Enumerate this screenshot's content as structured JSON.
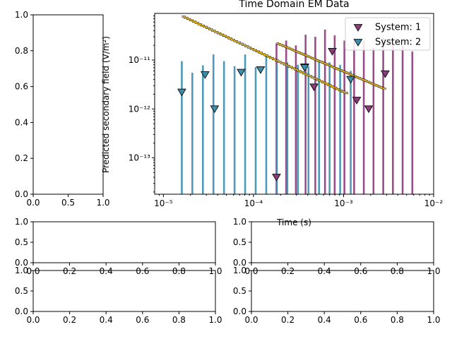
{
  "figure": {
    "background": "#ffffff"
  },
  "chart_data": [
    {
      "panel": "empty-left",
      "type": "empty",
      "xlim": [
        0,
        1
      ],
      "ylim": [
        0,
        1
      ],
      "xticks": [
        "0.0",
        "0.5",
        "1.0"
      ],
      "yticks": [
        "0.0",
        "0.2",
        "0.4",
        "0.6",
        "0.8",
        "1.0"
      ]
    },
    {
      "panel": "main",
      "type": "scatter",
      "title": "Time Domain EM Data",
      "xlabel": "Time (s)",
      "ylabel": "Predicted secondary field (V/m²)",
      "xscale": "log",
      "yscale": "log",
      "xlim": [
        8e-06,
        0.01
      ],
      "ylim": [
        1.8e-14,
        9e-11
      ],
      "xticks": [
        {
          "v": 1e-05,
          "label": "10⁻⁵"
        },
        {
          "v": 0.0001,
          "label": "10⁻⁴"
        },
        {
          "v": 0.001,
          "label": "10⁻³"
        },
        {
          "v": 0.01,
          "label": "10⁻²"
        }
      ],
      "yticks": [
        {
          "v": 1e-13,
          "label": "10⁻¹³"
        },
        {
          "v": 1e-12,
          "label": "10⁻¹²"
        },
        {
          "v": 1e-11,
          "label": "10⁻¹¹"
        }
      ],
      "legend_position": "top-right",
      "series": [
        {
          "name": "System: 1",
          "color": "#8e3b7c",
          "marker": "triangle-down",
          "x": [
            0.00018,
            0.00037,
            0.00047,
            0.00075,
            0.0014,
            0.0019,
            0.0029
          ],
          "y": [
            4e-14,
            7.2e-12,
            2.8e-12,
            1.5e-11,
            1.5e-12,
            1e-12,
            5.2e-12
          ],
          "bar_tops": [
            2.2e-11,
            2.5e-11,
            2e-11,
            3.3e-11,
            3e-11,
            4.2e-11,
            3.2e-11,
            2.5e-11,
            2.8e-11,
            2.5e-11,
            1.8e-11,
            2.8e-11,
            2.6e-11,
            2e-11,
            1.5e-11
          ]
        },
        {
          "name": "System: 2",
          "color": "#3b8fb0",
          "marker": "triangle-down",
          "x": [
            1.6e-05,
            2.9e-05,
            3.7e-05,
            7.3e-05,
            0.00012,
            0.00037,
            0.0012
          ],
          "y": [
            2.2e-12,
            5e-12,
            1e-12,
            5.6e-12,
            6.3e-12,
            7e-12,
            4e-12
          ],
          "bar_tops": [
            9.5e-12,
            5.5e-12,
            7.8e-12,
            1.3e-11,
            9.5e-12,
            7.5e-12,
            1.3e-11,
            7.2e-12,
            1.2e-11,
            8e-12,
            9e-12,
            8e-12,
            7.5e-12,
            1e-11,
            9e-12,
            8e-12,
            6e-12
          ]
        }
      ],
      "predicted_curves": [
        {
          "color": "#f0c020",
          "x_from": 1.6e-05,
          "x_to": 0.0011,
          "y_from": 7.8e-11,
          "y_to": 2e-12
        },
        {
          "color": "#f0c020",
          "x_from": 0.00018,
          "x_to": 0.0029,
          "y_from": 2.2e-11,
          "y_to": 2.5e-12
        }
      ]
    },
    {
      "panel": "small-1",
      "type": "empty",
      "xlim": [
        0,
        1
      ],
      "ylim": [
        0,
        1
      ],
      "xticks": [
        "0.0",
        "0.2",
        "0.4",
        "0.6",
        "0.8",
        "1.0"
      ],
      "yticks": [
        "0.0",
        "0.5",
        "1.0"
      ]
    },
    {
      "panel": "small-2",
      "type": "empty",
      "xlim": [
        0,
        1
      ],
      "ylim": [
        0,
        1
      ],
      "xticks": [
        "0.0",
        "0.2",
        "0.4",
        "0.6",
        "0.8",
        "1.0"
      ],
      "yticks": [
        "0.0",
        "0.5",
        "1.0"
      ]
    },
    {
      "panel": "small-3",
      "type": "empty",
      "xlim": [
        0,
        1
      ],
      "ylim": [
        0,
        1
      ],
      "xticks": [
        "0.0",
        "0.2",
        "0.4",
        "0.6",
        "0.8",
        "1.0"
      ],
      "yticks": [
        "0.0",
        "0.5",
        "1.0"
      ]
    },
    {
      "panel": "small-4",
      "type": "empty",
      "xlim": [
        0,
        1
      ],
      "ylim": [
        0,
        1
      ],
      "xticks": [
        "0.0",
        "0.2",
        "0.4",
        "0.6",
        "0.8",
        "1.0"
      ],
      "yticks": [
        "0.0",
        "0.5",
        "1.0"
      ]
    }
  ]
}
